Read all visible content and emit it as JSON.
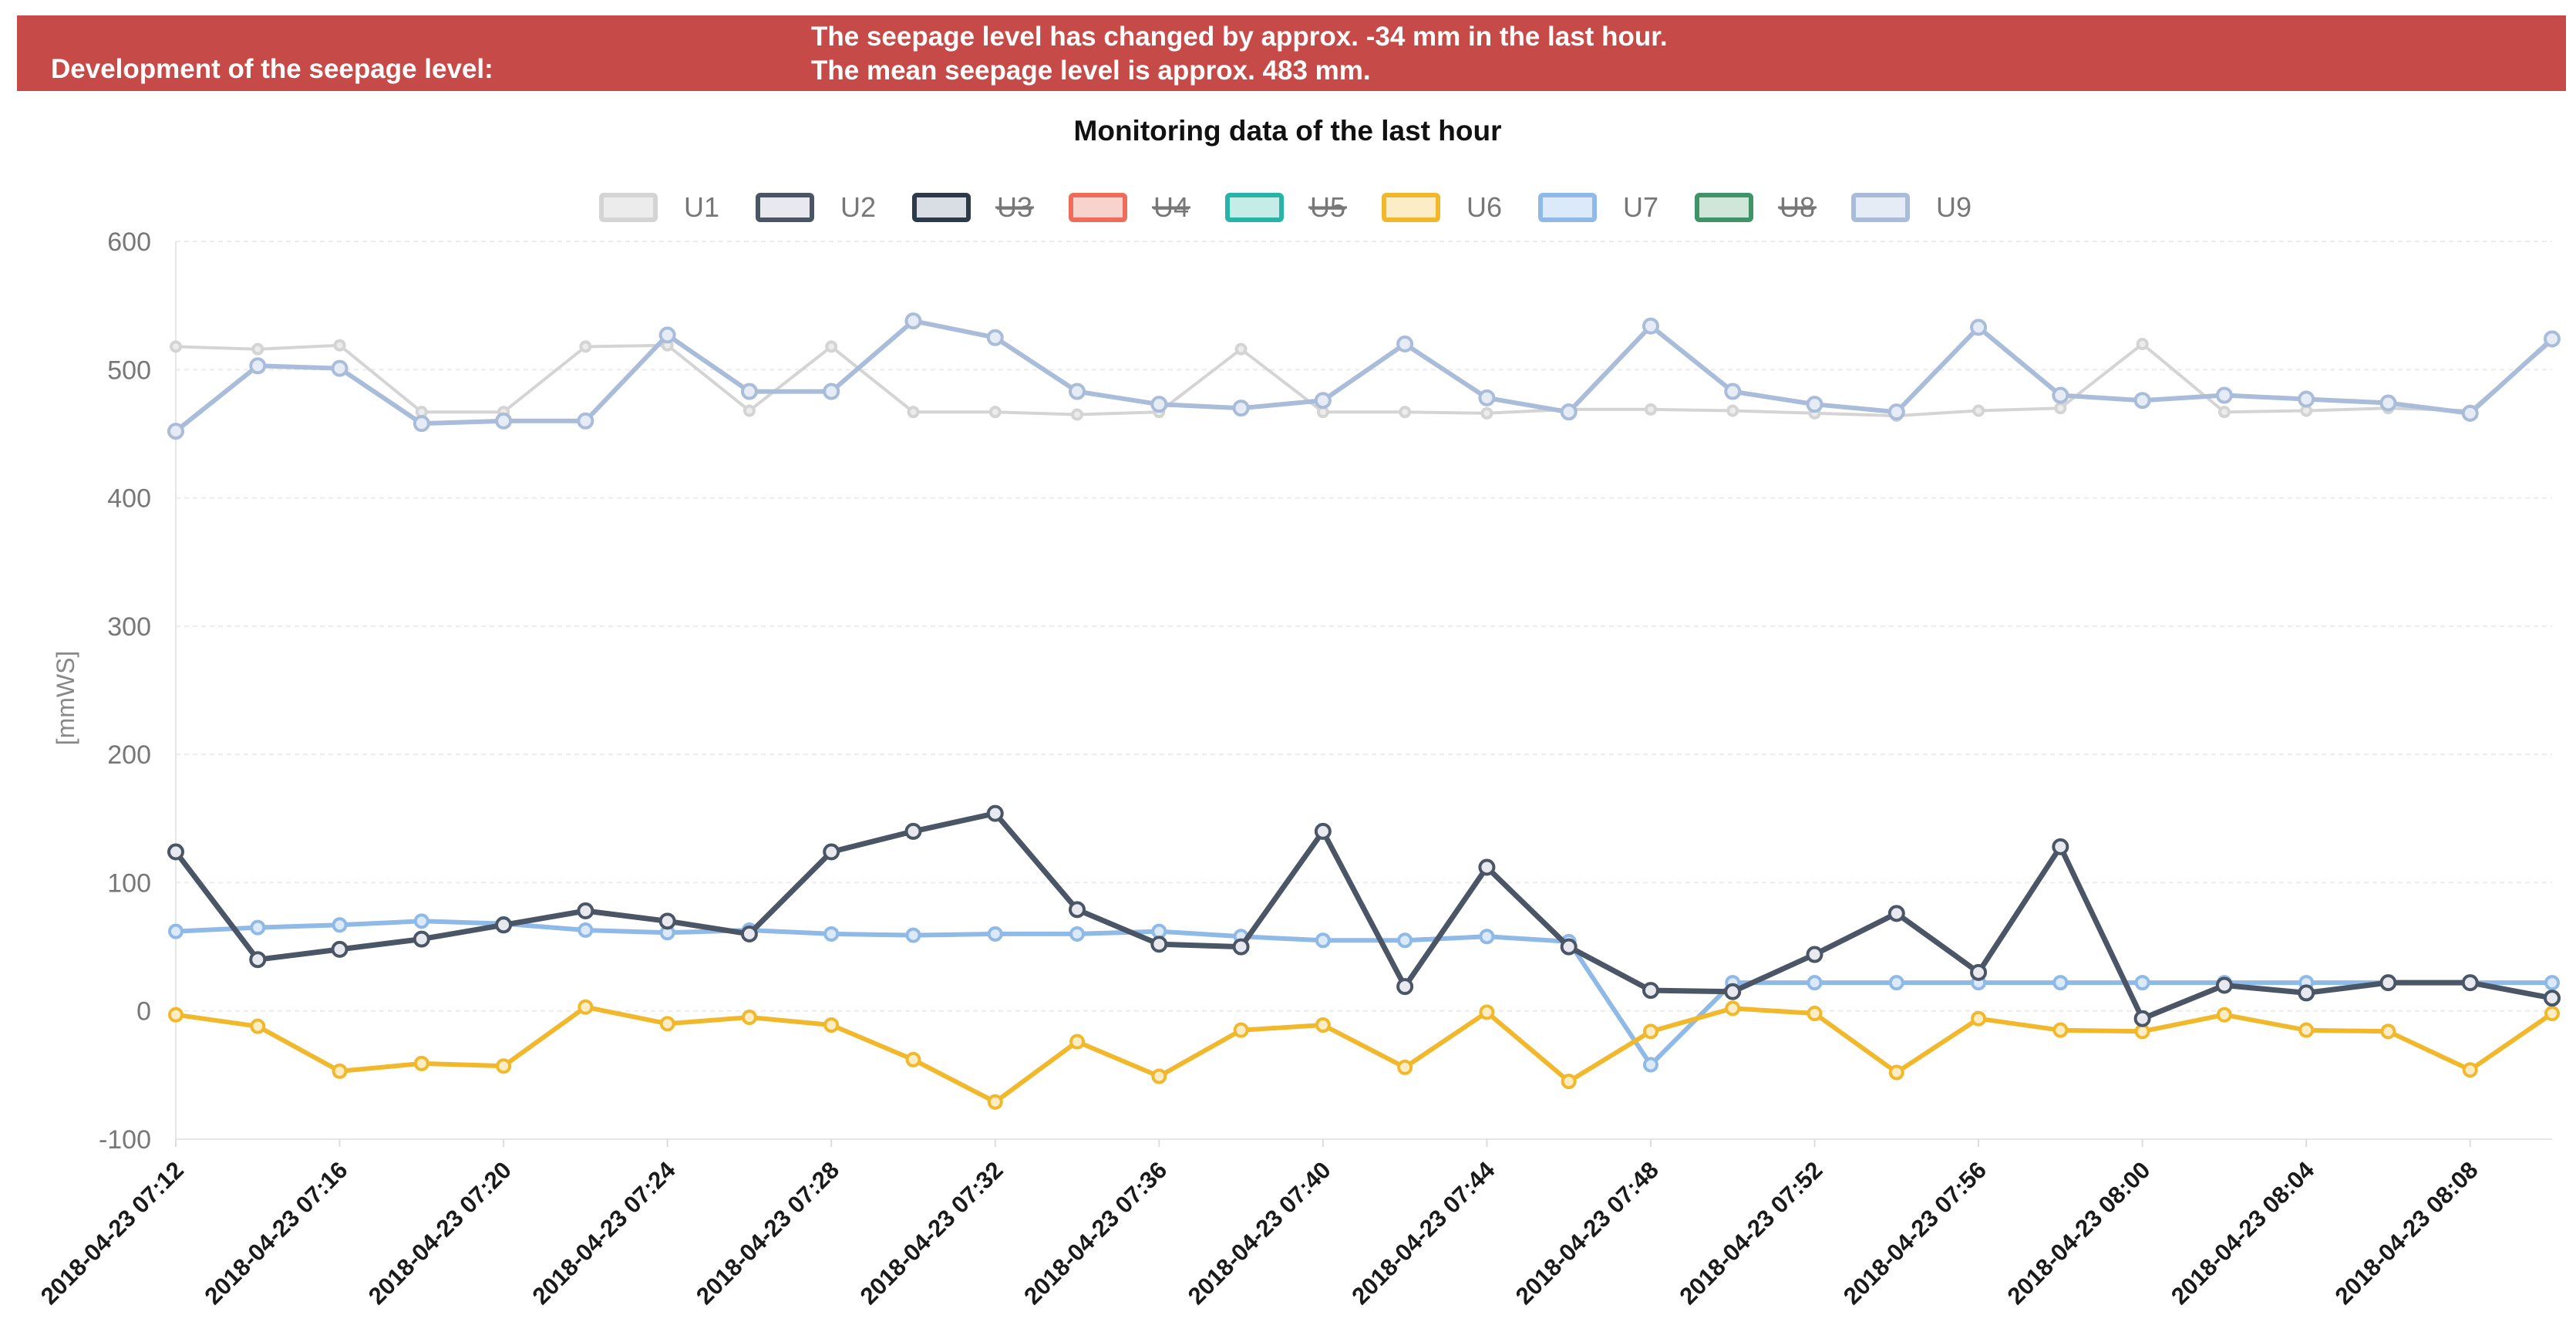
{
  "banner": {
    "label": "Development of the seepage level:",
    "message_line1": "The seepage level has changed by approx. -34 mm in the last hour.",
    "message_line2": "The mean seepage level is approx. 483 mm.",
    "color": "#c64a48"
  },
  "chart_data": {
    "type": "line",
    "title": "Monitoring data of the last hour",
    "ylabel": "[mmWS]",
    "xlabel": "",
    "ylim": [
      -100,
      600
    ],
    "yticks": [
      600,
      500,
      400,
      300,
      200,
      100,
      0,
      -100
    ],
    "grid": true,
    "legend_position": "top-center",
    "x_labels": [
      "2018-04-23 07:12",
      "2018-04-23 07:16",
      "2018-04-23 07:20",
      "2018-04-23 07:24",
      "2018-04-23 07:28",
      "2018-04-23 07:32",
      "2018-04-23 07:36",
      "2018-04-23 07:40",
      "2018-04-23 07:44",
      "2018-04-23 07:48",
      "2018-04-23 07:52",
      "2018-04-23 07:56",
      "2018-04-23 08:00",
      "2018-04-23 08:04",
      "2018-04-23 08:08"
    ],
    "n_points": 30,
    "series": [
      {
        "name": "U1",
        "hidden": false,
        "color": "#d4d4d4",
        "fill": "#ececec",
        "values": [
          518,
          516,
          519,
          467,
          467,
          518,
          519,
          468,
          518,
          467,
          467,
          465,
          467,
          516,
          467,
          467,
          466,
          469,
          469,
          468,
          466,
          464,
          468,
          470,
          520,
          467,
          468,
          470,
          468,
          522
        ]
      },
      {
        "name": "U2",
        "hidden": false,
        "color": "#4a5566",
        "fill": "#e7e9ee",
        "values": [
          124,
          40,
          48,
          56,
          67,
          78,
          70,
          60,
          124,
          140,
          154,
          79,
          52,
          50,
          140,
          19,
          112,
          50,
          16,
          15,
          44,
          76,
          30,
          128,
          -6,
          20,
          14,
          22,
          22,
          10
        ]
      },
      {
        "name": "U3",
        "hidden": true,
        "color": "#2d3a4a",
        "fill": "#d9dde4",
        "values": []
      },
      {
        "name": "U4",
        "hidden": true,
        "color": "#ef6c5a",
        "fill": "#f8d2cc",
        "values": []
      },
      {
        "name": "U5",
        "hidden": true,
        "color": "#26b3a8",
        "fill": "#c6ece8",
        "values": []
      },
      {
        "name": "U6",
        "hidden": false,
        "color": "#f2b82c",
        "fill": "#fcedc6",
        "values": [
          -3,
          -12,
          -47,
          -41,
          -43,
          3,
          -10,
          -5,
          -11,
          -38,
          -71,
          -24,
          -51,
          -15,
          -11,
          -44,
          -1,
          -55,
          -16,
          2,
          -2,
          -48,
          -6,
          -15,
          -16,
          -3,
          -15,
          -16,
          -46,
          -2
        ]
      },
      {
        "name": "U7",
        "hidden": false,
        "color": "#8fb9e6",
        "fill": "#dce9f8",
        "values": [
          62,
          65,
          67,
          70,
          68,
          63,
          61,
          63,
          60,
          59,
          60,
          60,
          62,
          58,
          55,
          55,
          58,
          54,
          -42,
          22,
          22,
          22,
          22,
          22,
          22,
          22,
          22,
          22,
          22,
          22
        ]
      },
      {
        "name": "U8",
        "hidden": true,
        "color": "#3f9467",
        "fill": "#cfe6d9",
        "values": []
      },
      {
        "name": "U9",
        "hidden": false,
        "color": "#a9bcd9",
        "fill": "#e6ecf6",
        "values": [
          452,
          503,
          501,
          458,
          460,
          460,
          527,
          483,
          483,
          538,
          525,
          483,
          473,
          470,
          476,
          520,
          478,
          467,
          534,
          483,
          473,
          467,
          533,
          480,
          476,
          480,
          477,
          474,
          466,
          524
        ]
      }
    ]
  }
}
